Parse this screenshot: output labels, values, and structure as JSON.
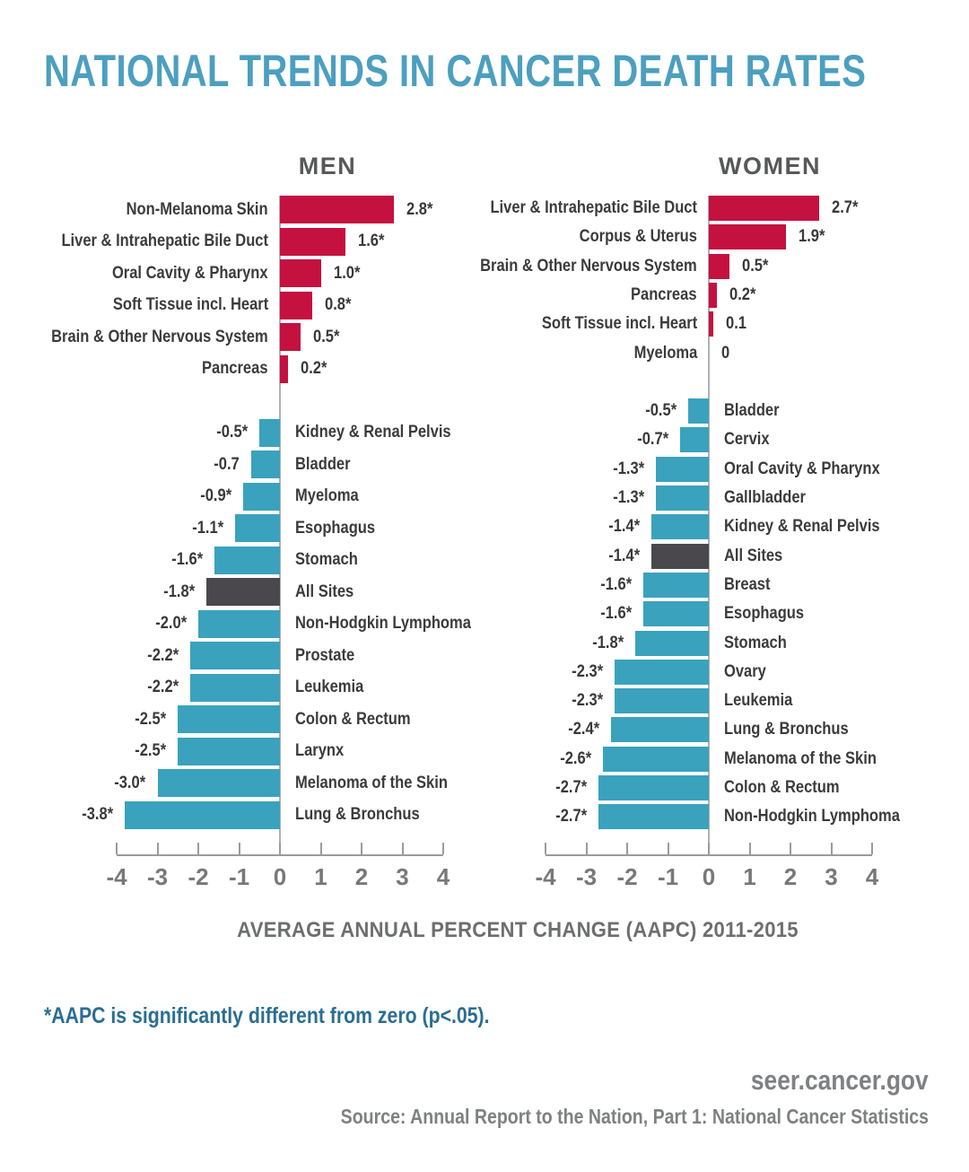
{
  "title": "NATIONAL TRENDS IN CANCER DEATH RATES",
  "axis_title": "AVERAGE ANNUAL PERCENT CHANGE (AAPC) 2011-2015",
  "footnote": "*AAPC is significantly different from zero (p<.05).",
  "footer": {
    "site": "seer.cancer.gov",
    "source": "Source: Annual Report to the Nation, Part 1: National Cancer Statistics"
  },
  "colors": {
    "increase_bar": "#C41140",
    "decrease_bar": "#3AA2BD",
    "all_sites_bar": "#4B484D",
    "title_teal": "#4C9FBF",
    "footnote_teal": "#2A6E91",
    "axis_gray": "#9B9B9D",
    "zero_line_gray": "#B0B1B3",
    "label_dark": "#3B3B3D",
    "header_gray": "#57585A",
    "footer_gray": "#7E8083"
  },
  "chart_data": [
    {
      "type": "bar",
      "orientation": "horizontal",
      "title": "MEN",
      "xlabel": "AVERAGE ANNUAL PERCENT CHANGE (AAPC) 2011-2015",
      "xlim": [
        -4,
        4
      ],
      "ticks": [
        "-4",
        "-3",
        "-2",
        "-1",
        "0",
        "1",
        "2",
        "3",
        "4"
      ],
      "grid": false,
      "series": [
        {
          "category": "Non-Melanoma Skin",
          "value": 2.8,
          "display": "2.8*",
          "significant": true,
          "highlight": false
        },
        {
          "category": "Liver & Intrahepatic Bile Duct",
          "value": 1.6,
          "display": "1.6*",
          "significant": true,
          "highlight": false
        },
        {
          "category": "Oral Cavity & Pharynx",
          "value": 1.0,
          "display": "1.0*",
          "significant": true,
          "highlight": false
        },
        {
          "category": "Soft Tissue incl. Heart",
          "value": 0.8,
          "display": "0.8*",
          "significant": true,
          "highlight": false
        },
        {
          "category": "Brain & Other Nervous System",
          "value": 0.5,
          "display": "0.5*",
          "significant": true,
          "highlight": false
        },
        {
          "category": "Pancreas",
          "value": 0.2,
          "display": "0.2*",
          "significant": true,
          "highlight": false
        },
        {
          "category": "Kidney & Renal Pelvis",
          "value": -0.5,
          "display": "-0.5*",
          "significant": true,
          "highlight": false
        },
        {
          "category": "Bladder",
          "value": -0.7,
          "display": "-0.7",
          "significant": false,
          "highlight": false
        },
        {
          "category": "Myeloma",
          "value": -0.9,
          "display": "-0.9*",
          "significant": true,
          "highlight": false
        },
        {
          "category": "Esophagus",
          "value": -1.1,
          "display": "-1.1*",
          "significant": true,
          "highlight": false
        },
        {
          "category": "Stomach",
          "value": -1.6,
          "display": "-1.6*",
          "significant": true,
          "highlight": false
        },
        {
          "category": "All Sites",
          "value": -1.8,
          "display": "-1.8*",
          "significant": true,
          "highlight": true
        },
        {
          "category": "Non-Hodgkin Lymphoma",
          "value": -2.0,
          "display": "-2.0*",
          "significant": true,
          "highlight": false
        },
        {
          "category": "Prostate",
          "value": -2.2,
          "display": "-2.2*",
          "significant": true,
          "highlight": false
        },
        {
          "category": "Leukemia",
          "value": -2.2,
          "display": "-2.2*",
          "significant": true,
          "highlight": false
        },
        {
          "category": "Colon & Rectum",
          "value": -2.5,
          "display": "-2.5*",
          "significant": true,
          "highlight": false
        },
        {
          "category": "Larynx",
          "value": -2.5,
          "display": "-2.5*",
          "significant": true,
          "highlight": false
        },
        {
          "category": "Melanoma of the Skin",
          "value": -3.0,
          "display": "-3.0*",
          "significant": true,
          "highlight": false
        },
        {
          "category": "Lung & Bronchus",
          "value": -3.8,
          "display": "-3.8*",
          "significant": true,
          "highlight": false
        }
      ]
    },
    {
      "type": "bar",
      "orientation": "horizontal",
      "title": "WOMEN",
      "xlabel": "AVERAGE ANNUAL PERCENT CHANGE (AAPC) 2011-2015",
      "xlim": [
        -4,
        4
      ],
      "ticks": [
        "-4",
        "-3",
        "-2",
        "-1",
        "0",
        "1",
        "2",
        "3",
        "4"
      ],
      "grid": false,
      "series": [
        {
          "category": "Liver & Intrahepatic Bile Duct",
          "value": 2.7,
          "display": "2.7*",
          "significant": true,
          "highlight": false
        },
        {
          "category": "Corpus & Uterus",
          "value": 1.9,
          "display": "1.9*",
          "significant": true,
          "highlight": false
        },
        {
          "category": "Brain & Other Nervous System",
          "value": 0.5,
          "display": "0.5*",
          "significant": true,
          "highlight": false
        },
        {
          "category": "Pancreas",
          "value": 0.2,
          "display": "0.2*",
          "significant": true,
          "highlight": false
        },
        {
          "category": "Soft Tissue incl. Heart",
          "value": 0.1,
          "display": "0.1",
          "significant": false,
          "highlight": false
        },
        {
          "category": "Myeloma",
          "value": 0,
          "display": "0",
          "significant": false,
          "highlight": false
        },
        {
          "category": "Bladder",
          "value": -0.5,
          "display": "-0.5*",
          "significant": true,
          "highlight": false
        },
        {
          "category": "Cervix",
          "value": -0.7,
          "display": "-0.7*",
          "significant": true,
          "highlight": false
        },
        {
          "category": "Oral Cavity & Pharynx",
          "value": -1.3,
          "display": "-1.3*",
          "significant": true,
          "highlight": false
        },
        {
          "category": "Gallbladder",
          "value": -1.3,
          "display": "-1.3*",
          "significant": true,
          "highlight": false
        },
        {
          "category": "Kidney & Renal Pelvis",
          "value": -1.4,
          "display": "-1.4*",
          "significant": true,
          "highlight": false
        },
        {
          "category": "All Sites",
          "value": -1.4,
          "display": "-1.4*",
          "significant": true,
          "highlight": true
        },
        {
          "category": "Breast",
          "value": -1.6,
          "display": "-1.6*",
          "significant": true,
          "highlight": false
        },
        {
          "category": "Esophagus",
          "value": -1.6,
          "display": "-1.6*",
          "significant": true,
          "highlight": false
        },
        {
          "category": "Stomach",
          "value": -1.8,
          "display": "-1.8*",
          "significant": true,
          "highlight": false
        },
        {
          "category": "Ovary",
          "value": -2.3,
          "display": "-2.3*",
          "significant": true,
          "highlight": false
        },
        {
          "category": "Leukemia",
          "value": -2.3,
          "display": "-2.3*",
          "significant": true,
          "highlight": false
        },
        {
          "category": "Lung & Bronchus",
          "value": -2.4,
          "display": "-2.4*",
          "significant": true,
          "highlight": false
        },
        {
          "category": "Melanoma of the Skin",
          "value": -2.6,
          "display": "-2.6*",
          "significant": true,
          "highlight": false
        },
        {
          "category": "Colon & Rectum",
          "value": -2.7,
          "display": "-2.7*",
          "significant": true,
          "highlight": false
        },
        {
          "category": "Non-Hodgkin Lymphoma",
          "value": -2.7,
          "display": "-2.7*",
          "significant": true,
          "highlight": false
        }
      ]
    }
  ]
}
